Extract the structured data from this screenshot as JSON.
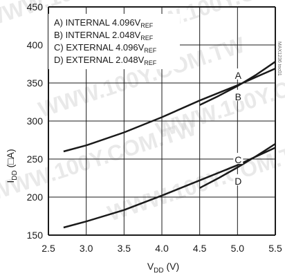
{
  "chart_data": {
    "type": "line",
    "xlabel": "V",
    "xlabel_sub": "DD",
    "xlabel_unit": " (V)",
    "ylabel": "I",
    "ylabel_sub": "DD",
    "ylabel_unit": " (□A)",
    "xlim": [
      2.5,
      5.5
    ],
    "ylim": [
      150,
      450
    ],
    "x_ticks": [
      2.5,
      3.0,
      3.5,
      4.0,
      4.5,
      5.0,
      5.5
    ],
    "x_tick_labels": [
      "2.5",
      "3.0",
      "3.5",
      "4.0",
      "4.5",
      "5.0",
      "5.5"
    ],
    "y_ticks": [
      150,
      200,
      250,
      300,
      350,
      400,
      450
    ],
    "y_tick_labels": [
      "150",
      "200",
      "250",
      "300",
      "350",
      "400",
      "450"
    ],
    "grid": true,
    "legend_position": "top-left",
    "legend": [
      {
        "text": "A) INTERNAL 4.096V",
        "sub": "REF"
      },
      {
        "text": "B) INTERNAL 2.048V",
        "sub": "REF"
      },
      {
        "text": "C) EXTERNAL 4.096V",
        "sub": "REF"
      },
      {
        "text": "D) EXTERNAL 2.048V",
        "sub": "REF"
      }
    ],
    "series": [
      {
        "name": "A",
        "x": [
          4.5,
          4.75,
          5.0,
          5.25,
          5.5
        ],
        "y": [
          321,
          333,
          346,
          361,
          378
        ]
      },
      {
        "name": "B",
        "x": [
          2.7,
          3.0,
          3.5,
          4.0,
          4.5,
          5.0,
          5.5
        ],
        "y": [
          260,
          268,
          285,
          305,
          327,
          347,
          369
        ]
      },
      {
        "name": "C",
        "x": [
          4.5,
          4.75,
          5.0,
          5.25,
          5.5
        ],
        "y": [
          212,
          225,
          239,
          254,
          270
        ]
      },
      {
        "name": "D",
        "x": [
          2.7,
          3.0,
          3.5,
          4.0,
          4.5,
          5.0,
          5.5
        ],
        "y": [
          160,
          168,
          183,
          202,
          222,
          242,
          265
        ]
      }
    ],
    "curve_labels": [
      {
        "text": "A",
        "x": 5.0,
        "y": 360
      },
      {
        "text": "B",
        "x": 5.0,
        "y": 332
      },
      {
        "text": "C",
        "x": 5.0,
        "y": 249
      },
      {
        "text": "D",
        "x": 5.0,
        "y": 221
      }
    ],
    "line_color": "#1a1a1a",
    "grid_color": "#1a1a1a"
  },
  "part_number": "MAX1236 toc01",
  "watermarks": [
    "WWW.100Y.COM.TW",
    "WWW.100Y.COM.TW",
    "WWW.100Y.COM.TW",
    "WWW.100Y.COM.TW",
    "WWW.100Y.COM.TW",
    "WWW.100Y.COM.TW"
  ]
}
